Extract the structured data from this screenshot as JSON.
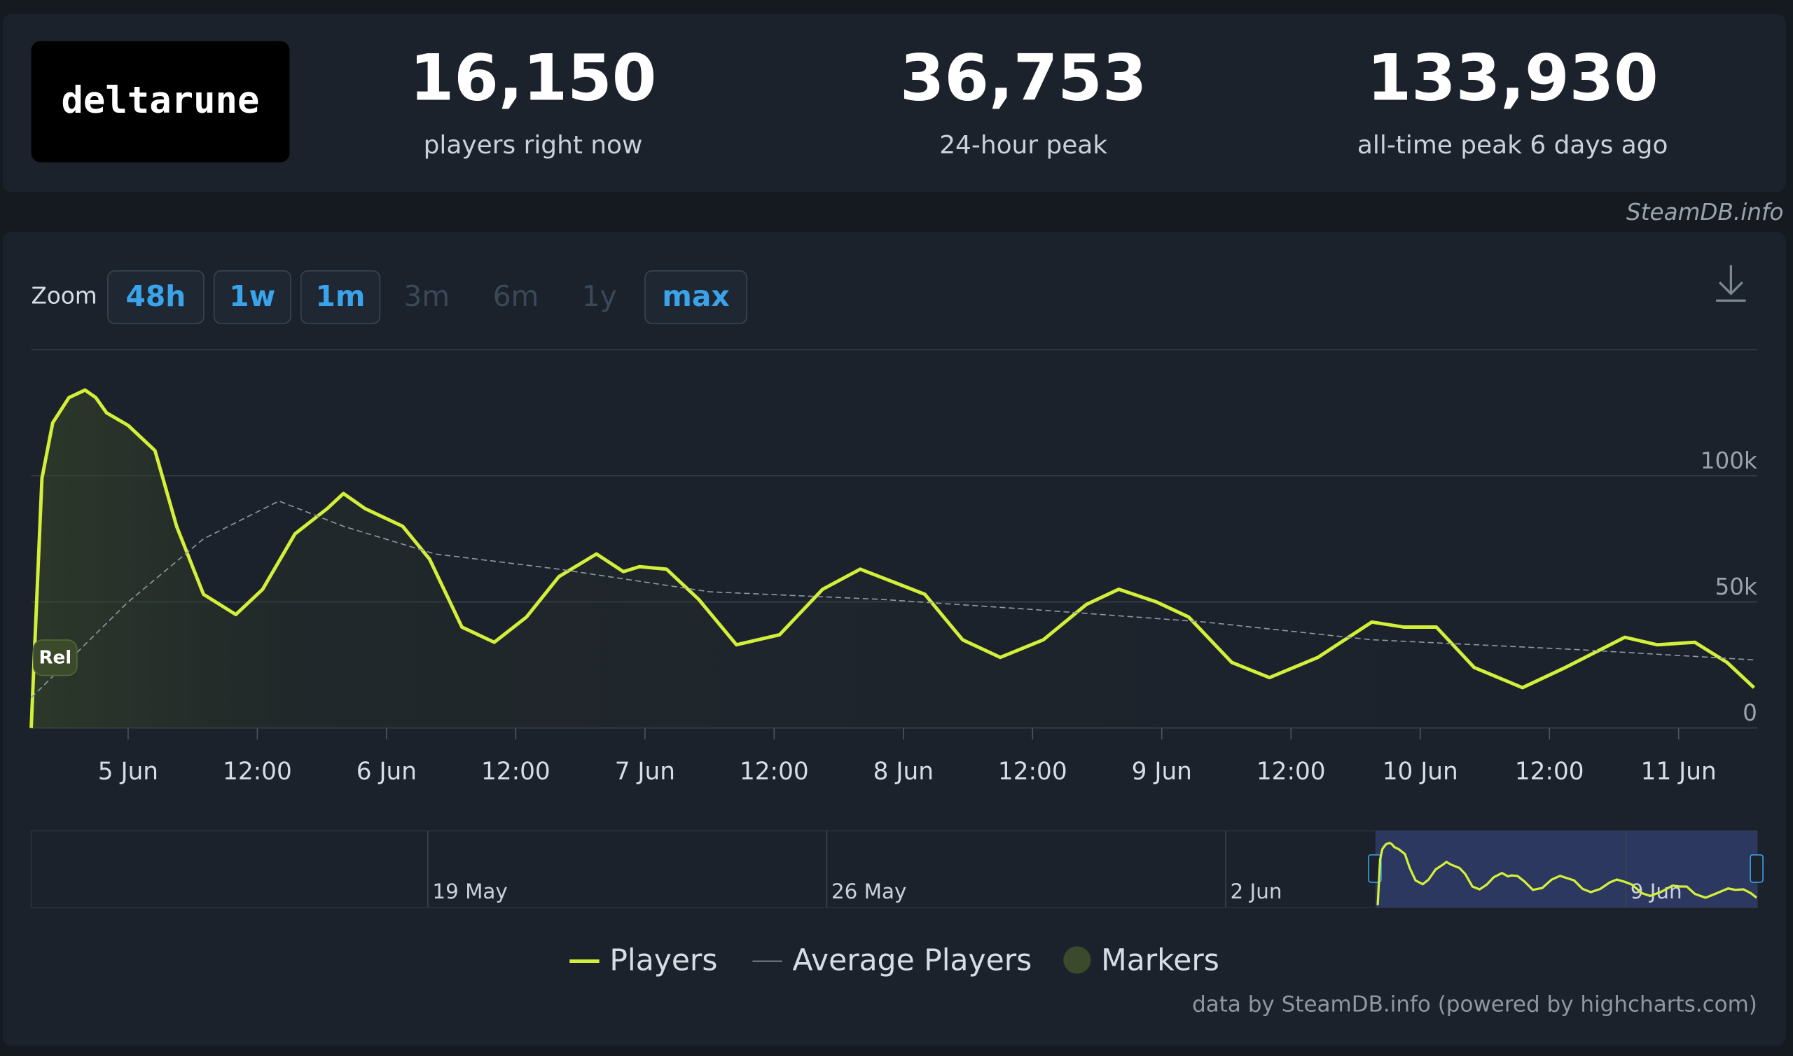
{
  "header": {
    "logo": "deltarune",
    "stats": [
      {
        "value": "16,150",
        "label": "players right now"
      },
      {
        "value": "36,753",
        "label": "24-hour peak"
      },
      {
        "value": "133,930",
        "label": "all-time peak 6 days ago"
      }
    ],
    "source": "SteamDB.info"
  },
  "zoom": {
    "label": "Zoom",
    "buttons": [
      {
        "text": "48h",
        "enabled": true
      },
      {
        "text": "1w",
        "enabled": true
      },
      {
        "text": "1m",
        "enabled": true
      },
      {
        "text": "3m",
        "enabled": false
      },
      {
        "text": "6m",
        "enabled": false
      },
      {
        "text": "1y",
        "enabled": false
      },
      {
        "text": "max",
        "enabled": true
      }
    ]
  },
  "chart_data": {
    "type": "line",
    "series": [
      {
        "name": "Players",
        "color": "#d2f03a",
        "x": [
          -9,
          -8,
          -7,
          -5.5,
          -4,
          -3,
          -2,
          0,
          2.5,
          4.5,
          7,
          10,
          12.5,
          15.5,
          18.5,
          20,
          22,
          25.5,
          28,
          31,
          34,
          37,
          40,
          43.5,
          46,
          47.5,
          50,
          53,
          56.5,
          60.5,
          64.5,
          68,
          71,
          74,
          77.5,
          81,
          85,
          89,
          92,
          95.5,
          98.5,
          102.5,
          106,
          110.5,
          115.5,
          118.5,
          121.5,
          125,
          129.5,
          133.5,
          139,
          142,
          145.5,
          148.5,
          151
        ],
        "values": [
          0,
          99000,
          121000,
          131000,
          134000,
          131000,
          125000,
          120000,
          110000,
          80000,
          53000,
          45000,
          55000,
          77000,
          87000,
          93000,
          87000,
          80000,
          67000,
          40000,
          34000,
          44000,
          60000,
          69000,
          62000,
          64000,
          63000,
          51000,
          33000,
          37000,
          55000,
          63000,
          58000,
          53000,
          35000,
          28000,
          35000,
          49000,
          55000,
          50000,
          44000,
          26000,
          20000,
          28000,
          42000,
          40000,
          40000,
          24000,
          16000,
          24000,
          36000,
          33000,
          34000,
          26000,
          16000
        ]
      },
      {
        "name": "Average Players",
        "color": "#8f98a0",
        "x": [
          -9,
          0,
          7,
          14,
          20,
          28.5,
          40,
          54,
          70,
          84,
          100,
          115.5,
          135,
          151
        ],
        "values": [
          12000,
          50000,
          75000,
          90000,
          80000,
          69000,
          63000,
          54000,
          51000,
          47000,
          42000,
          35000,
          31000,
          27000
        ]
      }
    ],
    "markers": {
      "name": "Markers",
      "color": "#3b4a2b",
      "items": [
        {
          "label": "Rel",
          "x": -9
        }
      ]
    },
    "xlim": [
      -9,
      151.3
    ],
    "xticks": [
      {
        "value": 0,
        "label": "5 Jun"
      },
      {
        "value": 12,
        "label": "12:00"
      },
      {
        "value": 24,
        "label": "6 Jun"
      },
      {
        "value": 36,
        "label": "12:00"
      },
      {
        "value": 48,
        "label": "7 Jun"
      },
      {
        "value": 60,
        "label": "12:00"
      },
      {
        "value": 72,
        "label": "8 Jun"
      },
      {
        "value": 84,
        "label": "12:00"
      },
      {
        "value": 96,
        "label": "9 Jun"
      },
      {
        "value": 108,
        "label": "12:00"
      },
      {
        "value": 120,
        "label": "10 Jun"
      },
      {
        "value": 132,
        "label": "12:00"
      },
      {
        "value": 144,
        "label": "11 Jun"
      }
    ],
    "ylim": [
      0,
      150000
    ],
    "yticks": [
      0,
      {
        "value": 50000,
        "label": "50k"
      },
      {
        "value": 100000,
        "label": "100k"
      }
    ],
    "grid": true,
    "navigator": {
      "labels": [
        "19 May",
        "26 May",
        "2 Jun",
        "9 Jun"
      ]
    },
    "credit": "data by SteamDB.info (powered by highcharts.com)"
  }
}
